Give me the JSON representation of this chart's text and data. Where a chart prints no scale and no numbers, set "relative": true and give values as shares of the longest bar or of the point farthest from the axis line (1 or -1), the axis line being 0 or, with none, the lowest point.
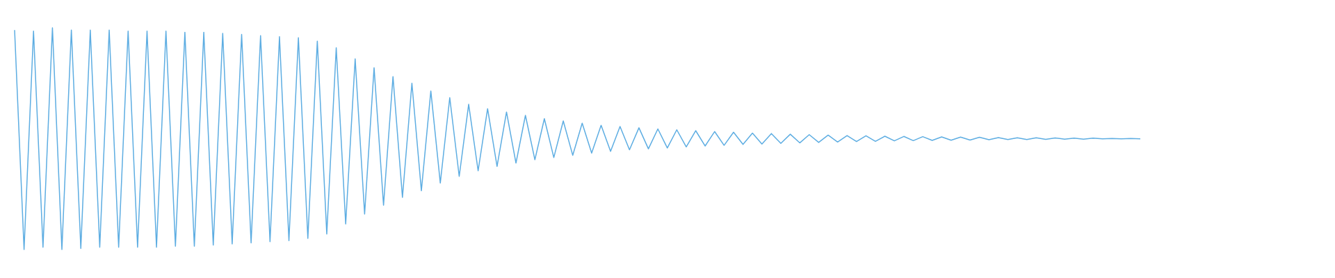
{
  "chart_data": {
    "type": "line",
    "relative": true,
    "color": "#5dade2",
    "categories": [
      null,
      null,
      null,
      null,
      null,
      null,
      null,
      null,
      null,
      null,
      null,
      null,
      null,
      null,
      null,
      null,
      null,
      null,
      null,
      null,
      null,
      null,
      null,
      null,
      null,
      null,
      null,
      null,
      null,
      null,
      null,
      null,
      null,
      null,
      null,
      null,
      null,
      null,
      null,
      null,
      null,
      null,
      null,
      null,
      null,
      null,
      null,
      null,
      null,
      null,
      null,
      null,
      null,
      null,
      null,
      null,
      null,
      null,
      null,
      null,
      null,
      null,
      null,
      null,
      null,
      null,
      null,
      null,
      null,
      null,
      null,
      null,
      null,
      null,
      null,
      null,
      null,
      null,
      null,
      null,
      null,
      null,
      null,
      null,
      null,
      null,
      null,
      null,
      null,
      null,
      null,
      null,
      null,
      null,
      null,
      null,
      null,
      null,
      null,
      null,
      null,
      null,
      null,
      null,
      null,
      null,
      null,
      null,
      null,
      null,
      null,
      null,
      null,
      null,
      null,
      null,
      null,
      null,
      null,
      null
    ],
    "values": [
      0.99,
      0,
      0.985,
      0.01,
      1,
      0,
      0.99,
      0.005,
      0.99,
      0.01,
      0.99,
      0.01,
      0.985,
      0.01,
      0.985,
      0.01,
      0.985,
      0.015,
      0.98,
      0.015,
      0.98,
      0.02,
      0.975,
      0.025,
      0.97,
      0.03,
      0.965,
      0.035,
      0.96,
      0.04,
      0.955,
      0.05,
      0.94,
      0.07,
      0.91,
      0.115,
      0.86,
      0.16,
      0.82,
      0.2,
      0.78,
      0.235,
      0.75,
      0.265,
      0.715,
      0.3,
      0.685,
      0.33,
      0.655,
      0.355,
      0.635,
      0.375,
      0.62,
      0.39,
      0.605,
      0.405,
      0.59,
      0.415,
      0.58,
      0.425,
      0.57,
      0.435,
      0.56,
      0.443,
      0.555,
      0.45,
      0.549,
      0.454,
      0.544,
      0.458,
      0.54,
      0.463,
      0.536,
      0.467,
      0.532,
      0.47,
      0.529,
      0.474,
      0.525,
      0.476,
      0.523,
      0.479,
      0.52,
      0.481,
      0.518,
      0.483,
      0.516,
      0.485,
      0.514,
      0.487,
      0.513,
      0.488,
      0.511,
      0.49,
      0.51,
      0.491,
      0.509,
      0.492,
      0.508,
      0.493,
      0.507,
      0.494,
      0.506,
      0.495,
      0.505,
      0.496,
      0.504,
      0.496,
      0.504,
      0.497,
      0.503,
      0.498,
      0.502,
      0.498,
      0.502,
      0.499,
      0.501,
      0.499,
      0.501,
      0.499
    ]
  }
}
